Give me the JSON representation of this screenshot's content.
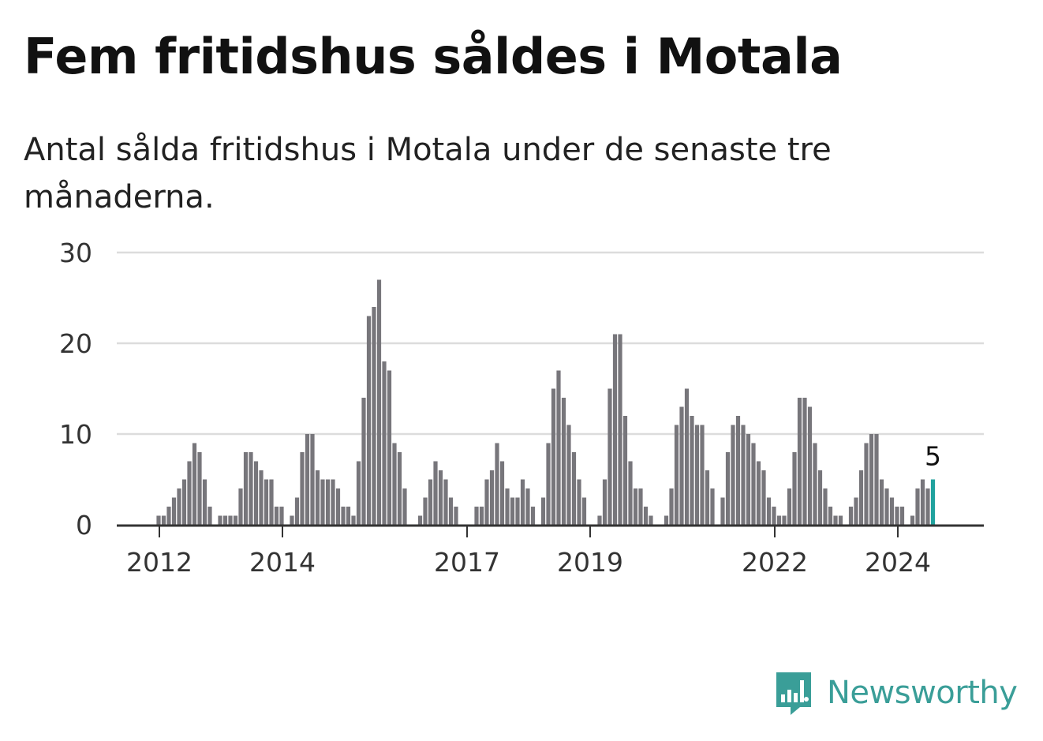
{
  "title": "Fem fritidshus såldes i Motala",
  "subtitle": "Antal sålda fritidshus i Motala under de senaste tre månaderna.",
  "brand": {
    "name": "Newsworthy",
    "icon": "newsworthy-logo-icon",
    "color": "#3a9e98"
  },
  "chart_data": {
    "type": "bar",
    "title": "Fem fritidshus såldes i Motala",
    "subtitle": "Antal sålda fritidshus i Motala under de senaste tre månaderna.",
    "x_unit": "month",
    "start_month": "2011-12",
    "values": [
      0,
      1,
      1,
      2,
      3,
      4,
      5,
      7,
      9,
      8,
      5,
      2,
      0,
      1,
      1,
      1,
      1,
      4,
      8,
      8,
      7,
      6,
      5,
      5,
      2,
      2,
      0,
      1,
      3,
      8,
      10,
      10,
      6,
      5,
      5,
      5,
      4,
      2,
      2,
      1,
      7,
      14,
      23,
      24,
      27,
      18,
      17,
      9,
      8,
      4,
      0,
      0,
      1,
      3,
      5,
      7,
      6,
      5,
      3,
      2,
      0,
      0,
      0,
      2,
      2,
      5,
      6,
      9,
      7,
      4,
      3,
      3,
      5,
      4,
      2,
      0,
      3,
      9,
      15,
      17,
      14,
      11,
      8,
      5,
      3,
      0,
      0,
      1,
      5,
      15,
      21,
      21,
      12,
      7,
      4,
      4,
      2,
      1,
      0,
      0,
      1,
      4,
      11,
      13,
      15,
      12,
      11,
      11,
      6,
      4,
      0,
      3,
      8,
      11,
      12,
      11,
      10,
      9,
      7,
      6,
      3,
      2,
      1,
      1,
      4,
      8,
      14,
      14,
      13,
      9,
      6,
      4,
      2,
      1,
      1,
      0,
      2,
      3,
      6,
      9,
      10,
      10,
      5,
      4,
      3,
      2,
      2,
      0,
      1,
      4,
      5,
      4,
      5
    ],
    "highlight": {
      "index": 152,
      "value": 5,
      "label": "5",
      "color": "#20a29e"
    },
    "bar_color": "#77767b",
    "ylim": [
      0,
      30
    ],
    "yticks": [
      0,
      10,
      20,
      30
    ],
    "xticks": [
      {
        "label": "2012",
        "index": 1
      },
      {
        "label": "2014",
        "index": 25
      },
      {
        "label": "2017",
        "index": 61
      },
      {
        "label": "2019",
        "index": 85
      },
      {
        "label": "2022",
        "index": 121
      },
      {
        "label": "2024",
        "index": 145
      }
    ],
    "xlabel": "",
    "ylabel": "",
    "grid": true,
    "legend": "none"
  }
}
